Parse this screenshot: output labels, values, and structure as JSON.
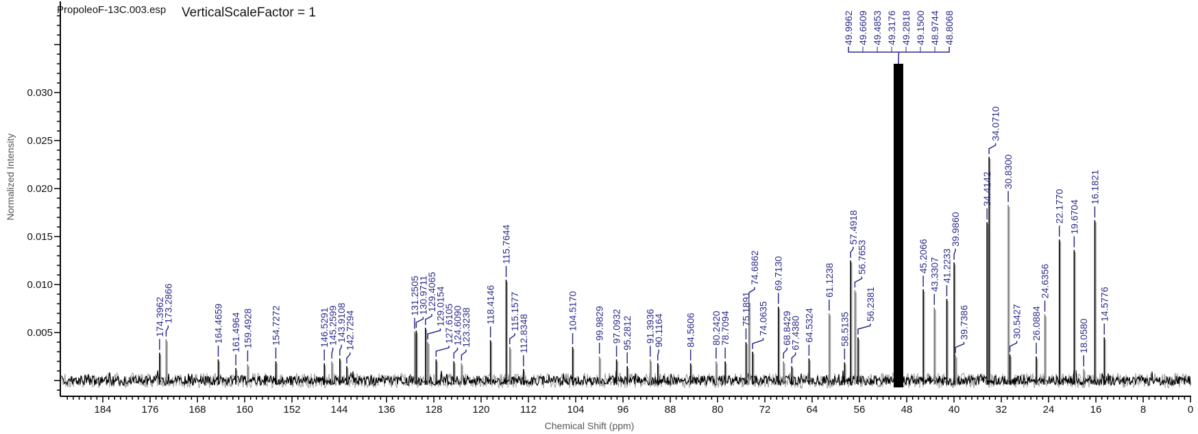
{
  "header": {
    "file_name": "PropoleoF-13C.003.esp",
    "scale_text": "VerticalScaleFactor = 1"
  },
  "chart_data": {
    "type": "line",
    "title": "",
    "xlabel": "Chemical Shift (ppm)",
    "ylabel": "Normalized Intensity",
    "xlim": [
      191,
      0
    ],
    "x_reversed": true,
    "ylim": [
      -0.0016,
      0.0396
    ],
    "x_ticks": [
      "184",
      "176",
      "168",
      "160",
      "152",
      "144",
      "136",
      "128",
      "120",
      "112",
      "104",
      "96",
      "88",
      "80",
      "72",
      "64",
      "56",
      "48",
      "40",
      "32",
      "24",
      "16",
      "8",
      "0"
    ],
    "y_ticks": [
      "0.005",
      "0.010",
      "0.015",
      "0.020",
      "0.025",
      "0.030"
    ],
    "grid": false,
    "colors": {
      "spectrum": "#000000",
      "peak_label": "#2a2a8a"
    },
    "solvent_cluster": {
      "labels": [
        "49.9962",
        "49.6609",
        "49.4853",
        "49.3176",
        "49.2818",
        "49.1500",
        "48.9744",
        "48.8068"
      ],
      "intensity": 0.033
    },
    "peaks": [
      {
        "shift": "174.3962",
        "intensity": 0.0029
      },
      {
        "shift": "173.2866",
        "intensity": 0.0043
      },
      {
        "shift": "164.4659",
        "intensity": 0.0022
      },
      {
        "shift": "161.4964",
        "intensity": 0.0013
      },
      {
        "shift": "159.4928",
        "intensity": 0.0017
      },
      {
        "shift": "154.7272",
        "intensity": 0.002
      },
      {
        "shift": "146.5291",
        "intensity": 0.0018
      },
      {
        "shift": "145.2599",
        "intensity": 0.002
      },
      {
        "shift": "143.9108",
        "intensity": 0.0023
      },
      {
        "shift": "142.7294",
        "intensity": 0.0015
      },
      {
        "shift": "131.2505",
        "intensity": 0.0051
      },
      {
        "shift": "130.9711",
        "intensity": 0.0052
      },
      {
        "shift": "129.4065",
        "intensity": 0.0055
      },
      {
        "shift": "129.0154",
        "intensity": 0.004
      },
      {
        "shift": "127.6105",
        "intensity": 0.0022
      },
      {
        "shift": "124.6090",
        "intensity": 0.002
      },
      {
        "shift": "123.3238",
        "intensity": 0.0018
      },
      {
        "shift": "118.4146",
        "intensity": 0.0042
      },
      {
        "shift": "115.7644",
        "intensity": 0.0105
      },
      {
        "shift": "115.1577",
        "intensity": 0.0035
      },
      {
        "shift": "112.8348",
        "intensity": 0.0012
      },
      {
        "shift": "104.5170",
        "intensity": 0.0035
      },
      {
        "shift": "99.9829",
        "intensity": 0.0025
      },
      {
        "shift": "97.0932",
        "intensity": 0.0022
      },
      {
        "shift": "95.2812",
        "intensity": 0.0015
      },
      {
        "shift": "91.3936",
        "intensity": 0.0022
      },
      {
        "shift": "90.1164",
        "intensity": 0.0018
      },
      {
        "shift": "84.5606",
        "intensity": 0.0018
      },
      {
        "shift": "80.2420",
        "intensity": 0.002
      },
      {
        "shift": "78.7094",
        "intensity": 0.002
      },
      {
        "shift": "75.1891",
        "intensity": 0.004
      },
      {
        "shift": "74.6862",
        "intensity": 0.0083
      },
      {
        "shift": "74.0635",
        "intensity": 0.003
      },
      {
        "shift": "69.7130",
        "intensity": 0.0077
      },
      {
        "shift": "68.8429",
        "intensity": 0.002
      },
      {
        "shift": "67.4380",
        "intensity": 0.0015
      },
      {
        "shift": "64.5324",
        "intensity": 0.0023
      },
      {
        "shift": "61.1238",
        "intensity": 0.007
      },
      {
        "shift": "58.5135",
        "intensity": 0.0019
      },
      {
        "shift": "57.4918",
        "intensity": 0.0125
      },
      {
        "shift": "56.7653",
        "intensity": 0.0094
      },
      {
        "shift": "56.2381",
        "intensity": 0.0045
      },
      {
        "shift": "45.2066",
        "intensity": 0.0095
      },
      {
        "shift": "43.3307",
        "intensity": 0.0076
      },
      {
        "shift": "41.2233",
        "intensity": 0.0085
      },
      {
        "shift": "39.9860",
        "intensity": 0.0123
      },
      {
        "shift": "39.7386",
        "intensity": 0.0026
      },
      {
        "shift": "34.4142",
        "intensity": 0.0165
      },
      {
        "shift": "34.0710",
        "intensity": 0.0233
      },
      {
        "shift": "30.8300",
        "intensity": 0.0183
      },
      {
        "shift": "30.5427",
        "intensity": 0.0027
      },
      {
        "shift": "26.0884",
        "intensity": 0.0025
      },
      {
        "shift": "24.6356",
        "intensity": 0.0069
      },
      {
        "shift": "22.1770",
        "intensity": 0.0147
      },
      {
        "shift": "19.6704",
        "intensity": 0.0136
      },
      {
        "shift": "18.0580",
        "intensity": 0.0012
      },
      {
        "shift": "16.1821",
        "intensity": 0.0167
      },
      {
        "shift": "14.5776",
        "intensity": 0.0045
      }
    ]
  }
}
